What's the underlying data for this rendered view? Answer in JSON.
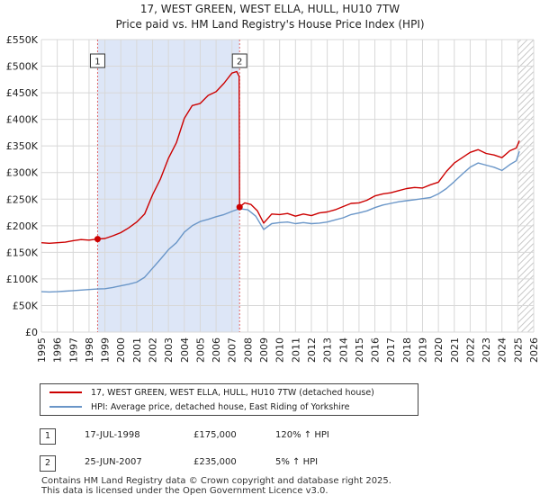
{
  "title": {
    "line1": "17, WEST GREEN, WEST ELLA, HULL, HU10 7TW",
    "line2": "Price paid vs. HM Land Registry's House Price Index (HPI)"
  },
  "colors": {
    "price": "#cc0000",
    "hpi": "#6a96c8",
    "shade": "#dde6f7",
    "grid": "#d8d8d8",
    "vline": "#e06666"
  },
  "chart_data": {
    "type": "line",
    "title": "17, WEST GREEN, WEST ELLA, HULL, HU10 7TW — Price paid vs. HM Land Registry's House Price Index (HPI)",
    "xlabel": "",
    "ylabel": "",
    "xlim": [
      1995,
      2026
    ],
    "ylim": [
      0,
      550000
    ],
    "y_ticks": [
      {
        "value": 0,
        "label": "£0"
      },
      {
        "value": 50000,
        "label": "£50K"
      },
      {
        "value": 100000,
        "label": "£100K"
      },
      {
        "value": 150000,
        "label": "£150K"
      },
      {
        "value": 200000,
        "label": "£200K"
      },
      {
        "value": 250000,
        "label": "£250K"
      },
      {
        "value": 300000,
        "label": "£300K"
      },
      {
        "value": 350000,
        "label": "£350K"
      },
      {
        "value": 400000,
        "label": "£400K"
      },
      {
        "value": 450000,
        "label": "£450K"
      },
      {
        "value": 500000,
        "label": "£500K"
      },
      {
        "value": 550000,
        "label": "£550K"
      }
    ],
    "x_ticks": [
      "1995",
      "1996",
      "1997",
      "1998",
      "1999",
      "2000",
      "2001",
      "2002",
      "2003",
      "2004",
      "2005",
      "2006",
      "2007",
      "2008",
      "2009",
      "2010",
      "2011",
      "2012",
      "2013",
      "2014",
      "2015",
      "2016",
      "2017",
      "2018",
      "2019",
      "2020",
      "2021",
      "2022",
      "2023",
      "2024",
      "2025",
      "2026"
    ],
    "shaded_period": [
      1998.54,
      2007.48
    ],
    "hatched_from": 2025.0,
    "series": [
      {
        "name": "17, WEST GREEN, WEST ELLA, HULL, HU10 7TW (detached house)",
        "x": [
          1995.0,
          1995.5,
          1996.0,
          1996.5,
          1997.0,
          1997.5,
          1998.0,
          1998.54,
          1999.0,
          1999.5,
          2000.0,
          2000.5,
          2001.0,
          2001.5,
          2002.0,
          2002.5,
          2003.0,
          2003.5,
          2004.0,
          2004.5,
          2005.0,
          2005.5,
          2006.0,
          2006.5,
          2007.0,
          2007.3,
          2007.45,
          2007.48,
          2007.8,
          2008.2,
          2008.6,
          2009.0,
          2009.5,
          2010.0,
          2010.5,
          2011.0,
          2011.5,
          2012.0,
          2012.5,
          2013.0,
          2013.5,
          2014.0,
          2014.5,
          2015.0,
          2015.5,
          2016.0,
          2016.5,
          2017.0,
          2017.5,
          2018.0,
          2018.5,
          2019.0,
          2019.5,
          2020.0,
          2020.5,
          2021.0,
          2021.5,
          2022.0,
          2022.5,
          2023.0,
          2023.5,
          2024.0,
          2024.5,
          2024.9,
          2025.1
        ],
        "y": [
          168000,
          167000,
          168000,
          169000,
          172000,
          174000,
          173000,
          175000,
          176000,
          181000,
          187000,
          196000,
          207000,
          222000,
          258000,
          288000,
          327000,
          356000,
          402000,
          426000,
          430000,
          445000,
          452000,
          468000,
          487000,
          490000,
          481000,
          235000,
          243000,
          240000,
          228000,
          205000,
          222000,
          221000,
          223000,
          218000,
          222000,
          219000,
          224000,
          226000,
          230000,
          236000,
          242000,
          243000,
          248000,
          256000,
          260000,
          262000,
          266000,
          270000,
          272000,
          271000,
          277000,
          282000,
          302000,
          318000,
          328000,
          338000,
          343000,
          336000,
          333000,
          328000,
          341000,
          346000,
          360000
        ]
      },
      {
        "name": "HPI: Average price, detached house, East Riding of Yorkshire",
        "x": [
          1995.0,
          1995.5,
          1996.0,
          1996.5,
          1997.0,
          1997.5,
          1998.0,
          1998.54,
          1999.0,
          1999.5,
          2000.0,
          2000.5,
          2001.0,
          2001.5,
          2002.0,
          2002.5,
          2003.0,
          2003.5,
          2004.0,
          2004.5,
          2005.0,
          2005.5,
          2006.0,
          2006.5,
          2007.0,
          2007.48,
          2008.0,
          2008.5,
          2009.0,
          2009.5,
          2010.0,
          2010.5,
          2011.0,
          2011.5,
          2012.0,
          2012.5,
          2013.0,
          2013.5,
          2014.0,
          2014.5,
          2015.0,
          2015.5,
          2016.0,
          2016.5,
          2017.0,
          2017.5,
          2018.0,
          2018.5,
          2019.0,
          2019.5,
          2020.0,
          2020.5,
          2021.0,
          2021.5,
          2022.0,
          2022.5,
          2023.0,
          2023.5,
          2024.0,
          2024.5,
          2024.9,
          2025.1
        ],
        "y": [
          76000,
          75500,
          76000,
          77000,
          78000,
          79000,
          80000,
          81000,
          81500,
          84000,
          87000,
          90000,
          94000,
          103000,
          120000,
          137000,
          155000,
          168000,
          188000,
          200000,
          208000,
          212000,
          217000,
          221000,
          227000,
          232000,
          230000,
          218000,
          193000,
          204000,
          206000,
          207000,
          204000,
          206000,
          204000,
          205000,
          207000,
          211000,
          215000,
          221000,
          224000,
          228000,
          234000,
          239000,
          242000,
          245000,
          247000,
          249000,
          251000,
          253000,
          260000,
          270000,
          283000,
          297000,
          310000,
          318000,
          314000,
          310000,
          304000,
          315000,
          322000,
          340000
        ]
      }
    ],
    "sale_markers": [
      {
        "id": "1",
        "x": 1998.54,
        "y": 175000
      },
      {
        "id": "2",
        "x": 2007.48,
        "y": 235000
      }
    ]
  },
  "legend": {
    "price_label": "17, WEST GREEN, WEST ELLA, HULL, HU10 7TW (detached house)",
    "hpi_label": "HPI: Average price, detached house, East Riding of Yorkshire"
  },
  "sales": [
    {
      "id": "1",
      "date": "17-JUL-1998",
      "price": "£175,000",
      "hpi": "120% ↑ HPI"
    },
    {
      "id": "2",
      "date": "25-JUN-2007",
      "price": "£235,000",
      "hpi": "5% ↑ HPI"
    }
  ],
  "footer": {
    "line1": "Contains HM Land Registry data © Crown copyright and database right 2025.",
    "line2": "This data is licensed under the Open Government Licence v3.0."
  }
}
